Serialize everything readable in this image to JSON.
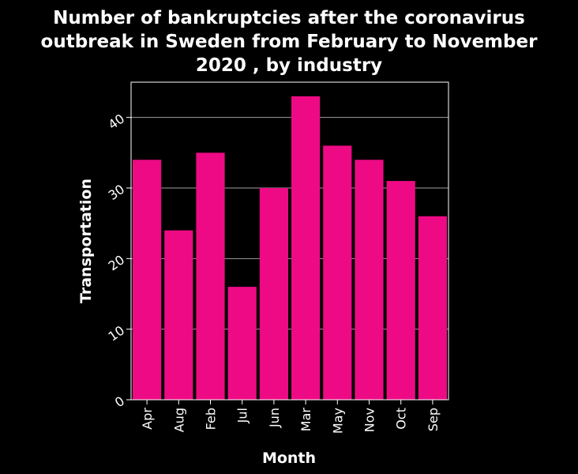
{
  "chart_data": {
    "type": "bar",
    "title_lines": [
      "Number of bankruptcies after the coronavirus",
      "outbreak in Sweden from February to November",
      "2020 , by industry"
    ],
    "xlabel": "Month",
    "ylabel": "Transportation",
    "categories": [
      "Apr",
      "Aug",
      "Feb",
      "Jul",
      "Jun",
      "Mar",
      "May",
      "Nov",
      "Oct",
      "Sep"
    ],
    "values": [
      34,
      24,
      35,
      16,
      30,
      43,
      36,
      34,
      31,
      26
    ],
    "ylim": [
      0,
      45
    ],
    "yticks": [
      0,
      10,
      20,
      30,
      40
    ],
    "grid": true,
    "bar_color": "#ee0a84",
    "background_color": "#000000",
    "grid_color": "#a0a0a0",
    "axis_color": "#ffffff"
  }
}
